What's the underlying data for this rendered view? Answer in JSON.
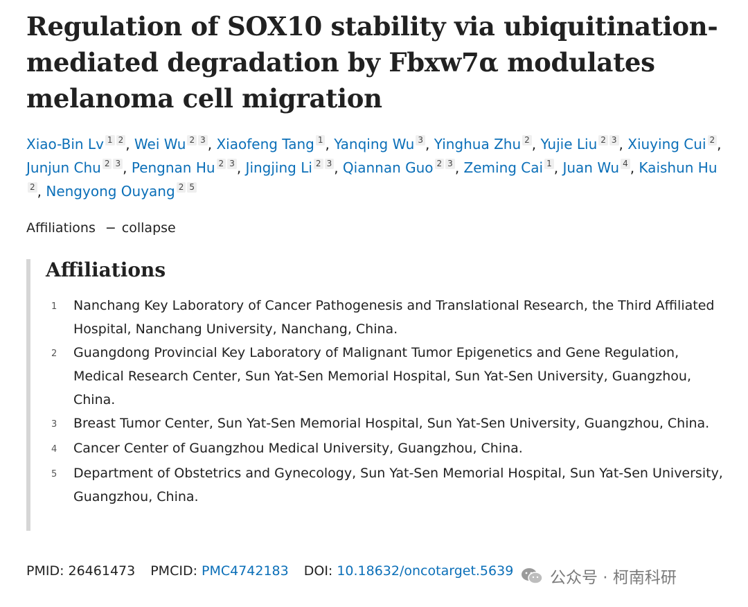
{
  "article": {
    "title": "Regulation of SOX10 stability via ubiquitination-mediated degradation by Fbxw7α modulates melanoma cell migration",
    "authors": [
      {
        "name": "Xiao-Bin Lv",
        "affs": [
          "1",
          "2"
        ]
      },
      {
        "name": "Wei Wu",
        "affs": [
          "2",
          "3"
        ]
      },
      {
        "name": "Xiaofeng Tang",
        "affs": [
          "1"
        ]
      },
      {
        "name": "Yanqing Wu",
        "affs": [
          "3"
        ]
      },
      {
        "name": "Yinghua Zhu",
        "affs": [
          "2"
        ]
      },
      {
        "name": "Yujie Liu",
        "affs": [
          "2",
          "3"
        ]
      },
      {
        "name": "Xiuying Cui",
        "affs": [
          "2"
        ]
      },
      {
        "name": "Junjun Chu",
        "affs": [
          "2",
          "3"
        ]
      },
      {
        "name": "Pengnan Hu",
        "affs": [
          "2",
          "3"
        ]
      },
      {
        "name": "Jingjing Li",
        "affs": [
          "2",
          "3"
        ]
      },
      {
        "name": "Qiannan Guo",
        "affs": [
          "2",
          "3"
        ]
      },
      {
        "name": "Zeming Cai",
        "affs": [
          "1"
        ]
      },
      {
        "name": "Juan Wu",
        "affs": [
          "4"
        ]
      },
      {
        "name": "Kaishun Hu",
        "affs": [
          "2"
        ]
      },
      {
        "name": "Nengyong Ouyang",
        "affs": [
          "2",
          "5"
        ]
      }
    ],
    "affiliations_toggle": {
      "label": "Affiliations",
      "dash": "−",
      "action": "collapse"
    },
    "affiliations_heading": "Affiliations",
    "affiliations": [
      {
        "num": "1",
        "text": "Nanchang Key Laboratory of Cancer Pathogenesis and Translational Research, the Third Affiliated Hospital, Nanchang University, Nanchang, China."
      },
      {
        "num": "2",
        "text": "Guangdong Provincial Key Laboratory of Malignant Tumor Epigenetics and Gene Regulation, Medical Research Center, Sun Yat-Sen Memorial Hospital, Sun Yat-Sen University, Guangzhou, China."
      },
      {
        "num": "3",
        "text": "Breast Tumor Center, Sun Yat-Sen Memorial Hospital, Sun Yat-Sen University, Guangzhou, China."
      },
      {
        "num": "4",
        "text": "Cancer Center of Guangzhou Medical University, Guangzhou, China."
      },
      {
        "num": "5",
        "text": "Department of Obstetrics and Gynecology, Sun Yat-Sen Memorial Hospital, Sun Yat-Sen University, Guangzhou, China."
      }
    ],
    "ids": {
      "pmid_label": "PMID:",
      "pmid": "26461473",
      "pmcid_label": "PMCID:",
      "pmcid": "PMC4742183",
      "doi_label": "DOI:",
      "doi": "10.18632/oncotarget.5639"
    }
  },
  "watermark": {
    "text": "公众号 · 柯南科研",
    "icon": "wechat-icon"
  },
  "colors": {
    "link": "#0b6fb8",
    "text": "#212121",
    "border": "#d6d6d6",
    "watermark": "#7a7a7a"
  }
}
